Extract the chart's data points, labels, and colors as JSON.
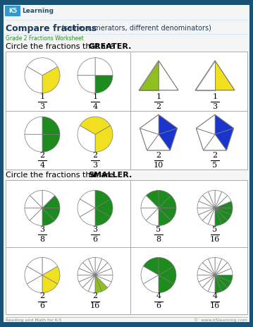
{
  "title": "Compare fractions",
  "title_suffix": " (same numerators, different denominators)",
  "subtitle": "Grade 2 Fractions Worksheet",
  "section1_plain": "Circle the fractions that are ",
  "section1_bold": "GREATER.",
  "section2_plain": "Circle the fractions that are ",
  "section2_bold": "SMALLER.",
  "footer_left": "Reading and Math for K-5",
  "footer_right": "©  www.k5learning.com",
  "bg_color": "#f5f5f5",
  "border_color": "#1a5276",
  "green_dark": "#1e8b1e",
  "green_light": "#90c020",
  "yellow": "#f0e020",
  "blue_dark": "#1a35cc",
  "white": "#ffffff",
  "gray_line": "#aaaaaa",
  "title_color": "#1a3c5e",
  "subtitle_color": "#2a8a2a"
}
